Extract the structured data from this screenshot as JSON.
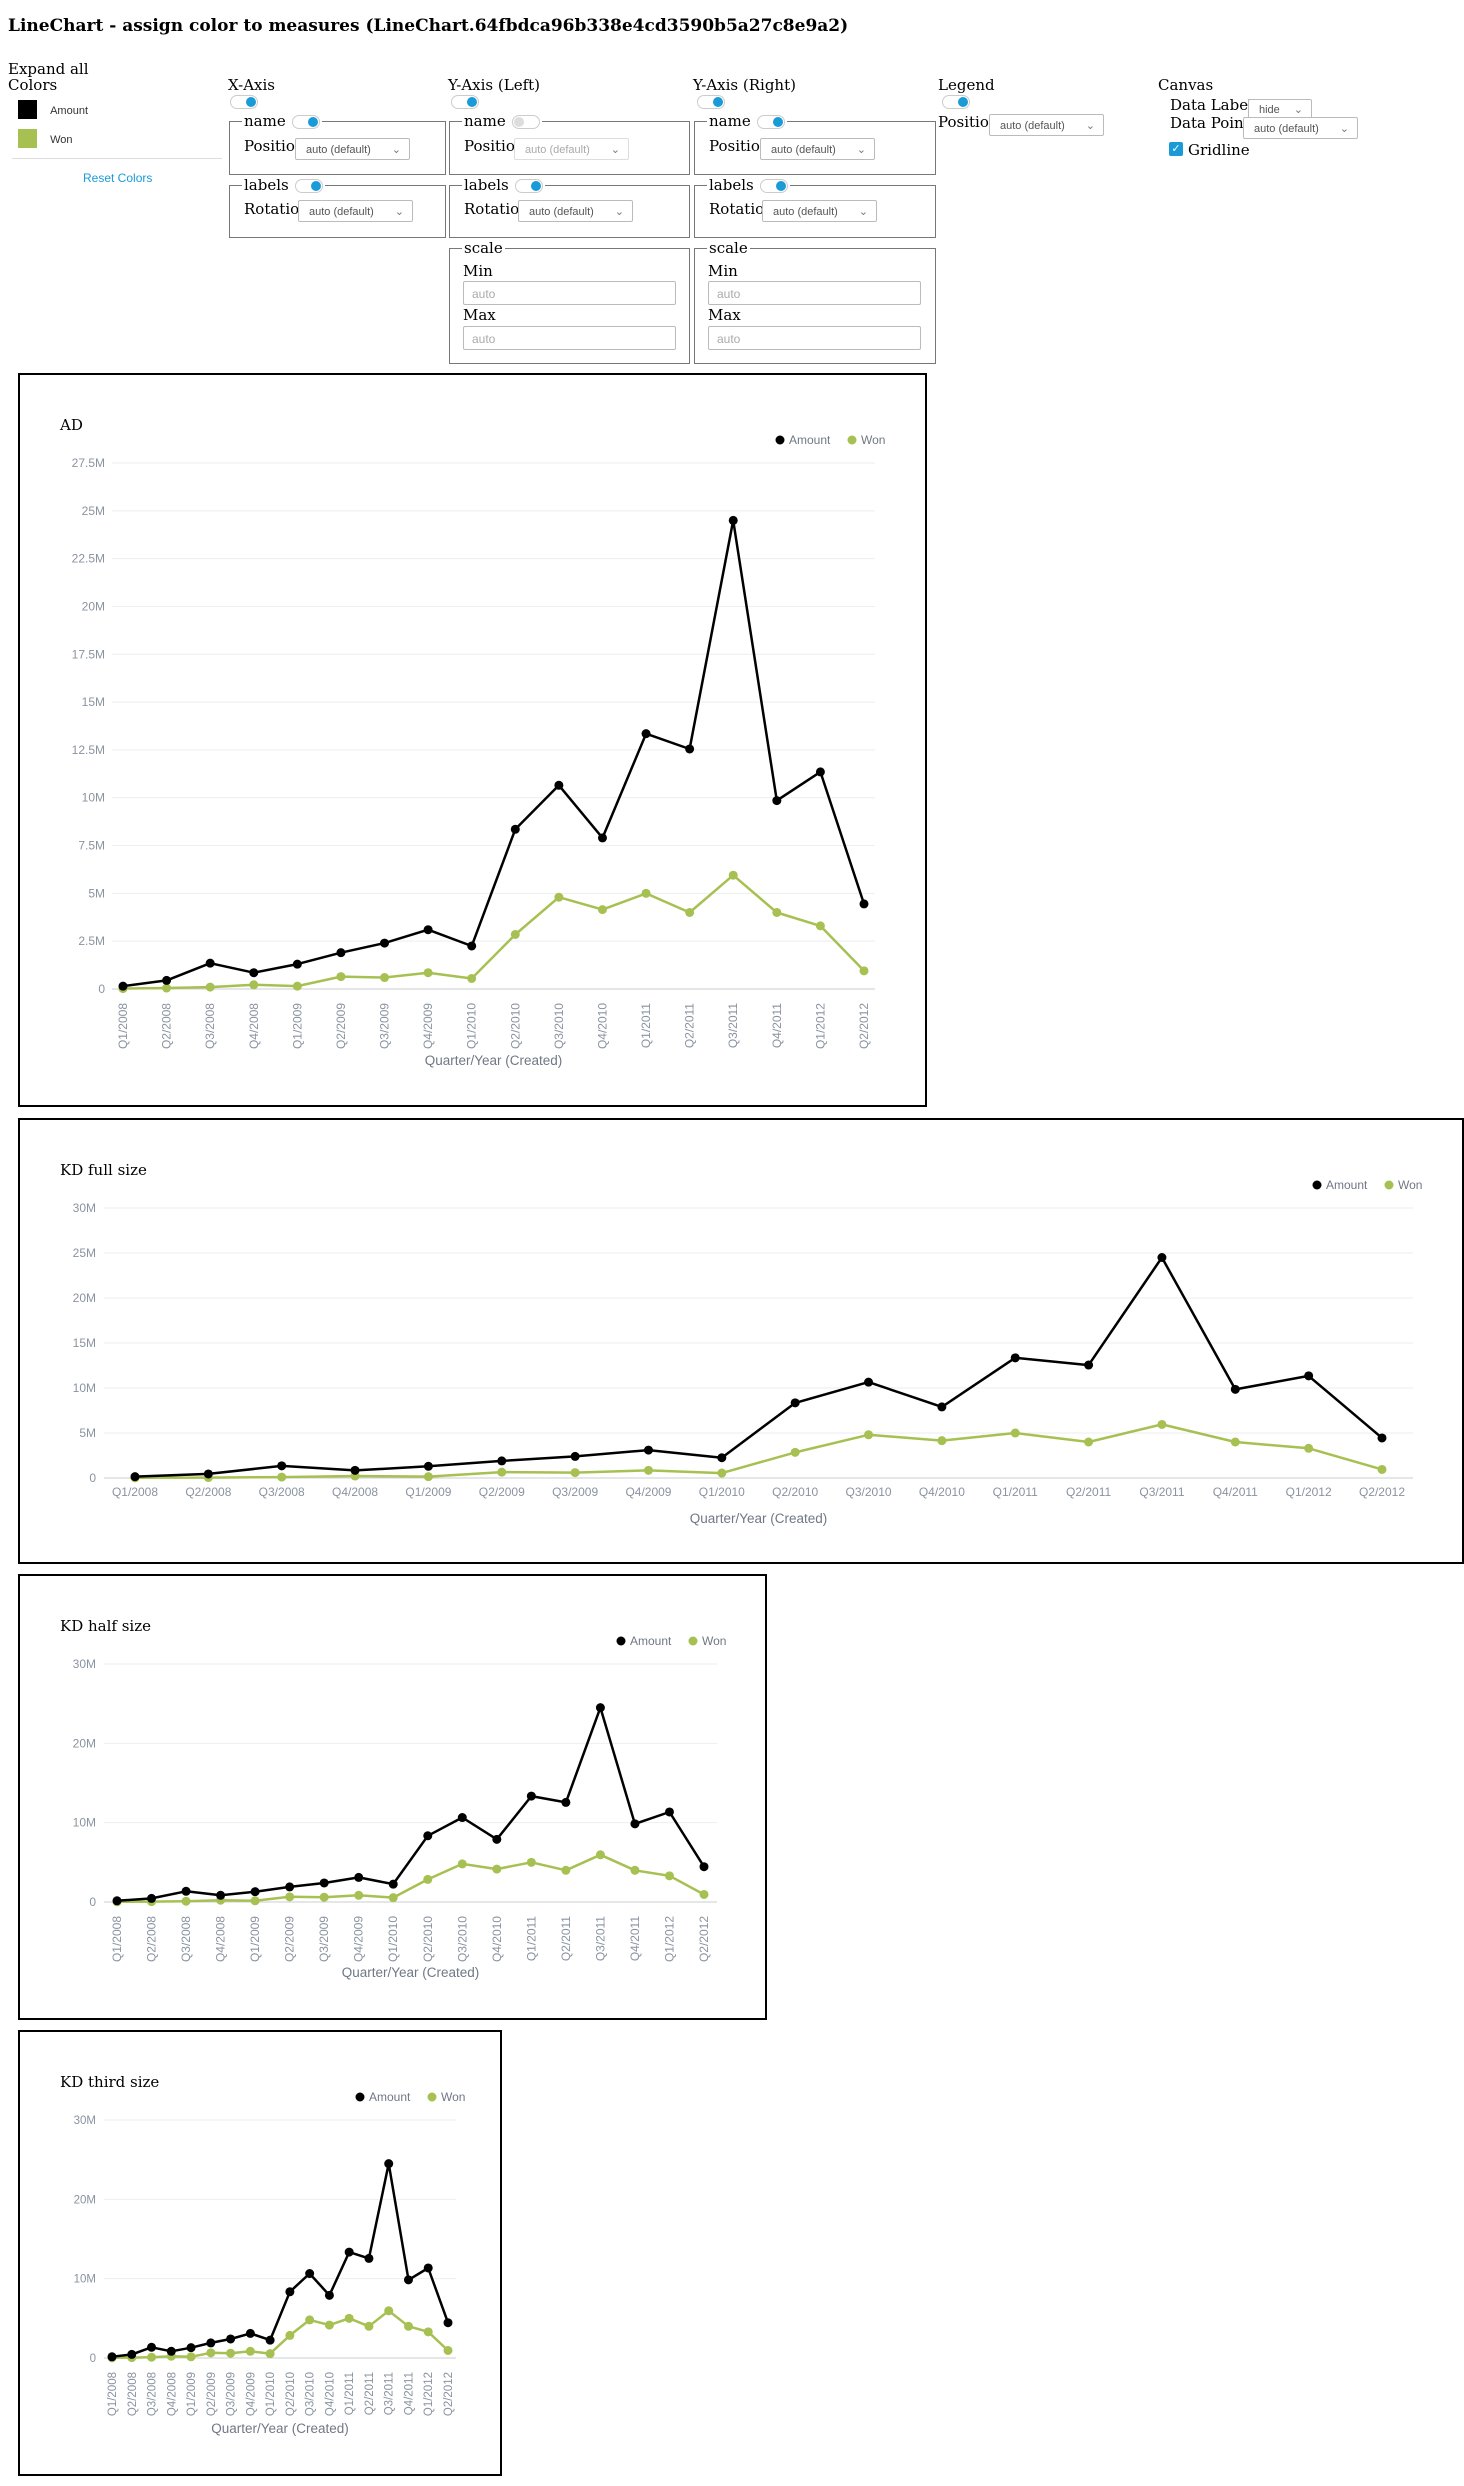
{
  "page": {
    "title": "LineChart - assign color to measures (LineChart.64fbdca96b338e4cd3590b5a27c8e9a2)"
  },
  "colors_panel": {
    "expand_all": "Expand all",
    "heading": "Colors",
    "items": [
      {
        "label": "Amount",
        "color": "#000000"
      },
      {
        "label": "Won",
        "color": "#a7c052"
      }
    ],
    "reset_label": "Reset Colors"
  },
  "x_axis": {
    "heading": "X-Axis",
    "name_legend": "name",
    "position_label": "Position",
    "position_value": "auto (default)",
    "labels_legend": "labels",
    "rotation_label": "Rotation",
    "rotation_value": "auto (default)"
  },
  "y_axis_left": {
    "heading": "Y-Axis (Left)",
    "name_legend": "name",
    "position_label": "Position",
    "position_value": "auto (default)",
    "labels_legend": "labels",
    "rotation_label": "Rotation",
    "rotation_value": "auto (default)",
    "scale_legend": "scale",
    "min_label": "Min",
    "min_placeholder": "auto",
    "max_label": "Max",
    "max_placeholder": "auto"
  },
  "y_axis_right": {
    "heading": "Y-Axis (Right)",
    "name_legend": "name",
    "position_label": "Position",
    "position_value": "auto (default)",
    "labels_legend": "labels",
    "rotation_label": "Rotation",
    "rotation_value": "auto (default)",
    "scale_legend": "scale",
    "min_label": "Min",
    "min_placeholder": "auto",
    "max_label": "Max",
    "max_placeholder": "auto"
  },
  "legend_panel": {
    "heading": "Legend",
    "position_label": "Position",
    "position_value": "auto (default)"
  },
  "canvas_panel": {
    "heading": "Canvas",
    "data_labels_label": "Data Labels",
    "data_labels_value": "hide",
    "data_points_label": "Data Points",
    "data_points_value": "auto (default)",
    "gridline_label": "Gridline",
    "gridline_checked": true
  },
  "chart_data": [
    {
      "type": "line",
      "title": "AD",
      "xlabel": "Quarter/Year (Created)",
      "ylabel": "",
      "x": [
        "Q1/2008",
        "Q2/2008",
        "Q3/2008",
        "Q4/2008",
        "Q1/2009",
        "Q2/2009",
        "Q3/2009",
        "Q4/2009",
        "Q1/2010",
        "Q2/2010",
        "Q3/2010",
        "Q4/2010",
        "Q1/2011",
        "Q2/2011",
        "Q3/2011",
        "Q4/2011",
        "Q1/2012",
        "Q2/2012"
      ],
      "series": [
        {
          "name": "Amount",
          "color": "#000000",
          "values": [
            0.15,
            0.45,
            1.35,
            0.85,
            1.3,
            1.9,
            2.4,
            3.1,
            2.25,
            8.35,
            10.65,
            7.9,
            13.35,
            12.55,
            24.5,
            9.85,
            11.35,
            4.45
          ]
        },
        {
          "name": "Won",
          "color": "#a7c052",
          "values": [
            0.02,
            0.05,
            0.1,
            0.22,
            0.15,
            0.65,
            0.6,
            0.85,
            0.55,
            2.85,
            4.8,
            4.15,
            5.0,
            4.0,
            5.95,
            4.0,
            3.3,
            0.95
          ]
        }
      ],
      "y_ticks": [
        "0",
        "2.5M",
        "5M",
        "7.5M",
        "10M",
        "12.5M",
        "15M",
        "17.5M",
        "20M",
        "22.5M",
        "25M",
        "27.5M"
      ],
      "ylim": [
        0,
        27.5
      ],
      "x_labels_rotated": true,
      "grid": true,
      "legend": "top-right"
    },
    {
      "type": "line",
      "title": "KD full size",
      "xlabel": "Quarter/Year (Created)",
      "ylabel": "",
      "x": [
        "Q1/2008",
        "Q2/2008",
        "Q3/2008",
        "Q4/2008",
        "Q1/2009",
        "Q2/2009",
        "Q3/2009",
        "Q4/2009",
        "Q1/2010",
        "Q2/2010",
        "Q3/2010",
        "Q4/2010",
        "Q1/2011",
        "Q2/2011",
        "Q3/2011",
        "Q4/2011",
        "Q1/2012",
        "Q2/2012"
      ],
      "series": [
        {
          "name": "Amount",
          "color": "#000000",
          "values": [
            0.15,
            0.45,
            1.35,
            0.85,
            1.3,
            1.9,
            2.4,
            3.1,
            2.25,
            8.35,
            10.65,
            7.9,
            13.35,
            12.55,
            24.5,
            9.85,
            11.35,
            4.45
          ]
        },
        {
          "name": "Won",
          "color": "#a7c052",
          "values": [
            0.02,
            0.05,
            0.1,
            0.22,
            0.15,
            0.65,
            0.6,
            0.85,
            0.55,
            2.85,
            4.8,
            4.15,
            5.0,
            4.0,
            5.95,
            4.0,
            3.3,
            0.95
          ]
        }
      ],
      "y_ticks": [
        "0",
        "5M",
        "10M",
        "15M",
        "20M",
        "25M",
        "30M"
      ],
      "ylim": [
        0,
        30
      ],
      "x_labels_rotated": false,
      "grid": true,
      "legend": "top-right"
    },
    {
      "type": "line",
      "title": "KD half size",
      "xlabel": "Quarter/Year (Created)",
      "ylabel": "",
      "x": [
        "Q1/2008",
        "Q2/2008",
        "Q3/2008",
        "Q4/2008",
        "Q1/2009",
        "Q2/2009",
        "Q3/2009",
        "Q4/2009",
        "Q1/2010",
        "Q2/2010",
        "Q3/2010",
        "Q4/2010",
        "Q1/2011",
        "Q2/2011",
        "Q3/2011",
        "Q4/2011",
        "Q1/2012",
        "Q2/2012"
      ],
      "series": [
        {
          "name": "Amount",
          "color": "#000000",
          "values": [
            0.15,
            0.45,
            1.35,
            0.85,
            1.3,
            1.9,
            2.4,
            3.1,
            2.25,
            8.35,
            10.65,
            7.9,
            13.35,
            12.55,
            24.5,
            9.85,
            11.35,
            4.45
          ]
        },
        {
          "name": "Won",
          "color": "#a7c052",
          "values": [
            0.02,
            0.05,
            0.1,
            0.22,
            0.15,
            0.65,
            0.6,
            0.85,
            0.55,
            2.85,
            4.8,
            4.15,
            5.0,
            4.0,
            5.95,
            4.0,
            3.3,
            0.95
          ]
        }
      ],
      "y_ticks": [
        "0",
        "10M",
        "20M",
        "30M"
      ],
      "ylim": [
        0,
        30
      ],
      "x_labels_rotated": true,
      "grid": true,
      "legend": "top-right"
    },
    {
      "type": "line",
      "title": "KD third size",
      "xlabel": "Quarter/Year (Created)",
      "ylabel": "",
      "x": [
        "Q1/2008",
        "Q2/2008",
        "Q3/2008",
        "Q4/2008",
        "Q1/2009",
        "Q2/2009",
        "Q3/2009",
        "Q4/2009",
        "Q1/2010",
        "Q2/2010",
        "Q3/2010",
        "Q4/2010",
        "Q1/2011",
        "Q2/2011",
        "Q3/2011",
        "Q4/2011",
        "Q1/2012",
        "Q2/2012"
      ],
      "series": [
        {
          "name": "Amount",
          "color": "#000000",
          "values": [
            0.15,
            0.45,
            1.35,
            0.85,
            1.3,
            1.9,
            2.4,
            3.1,
            2.25,
            8.35,
            10.65,
            7.9,
            13.35,
            12.55,
            24.5,
            9.85,
            11.35,
            4.45
          ]
        },
        {
          "name": "Won",
          "color": "#a7c052",
          "values": [
            0.02,
            0.05,
            0.1,
            0.22,
            0.15,
            0.65,
            0.6,
            0.85,
            0.55,
            2.85,
            4.8,
            4.15,
            5.0,
            4.0,
            5.95,
            4.0,
            3.3,
            0.95
          ]
        }
      ],
      "y_ticks": [
        "0",
        "10M",
        "20M",
        "30M"
      ],
      "ylim": [
        0,
        30
      ],
      "x_labels_rotated": true,
      "grid": true,
      "legend": "top-right"
    }
  ]
}
